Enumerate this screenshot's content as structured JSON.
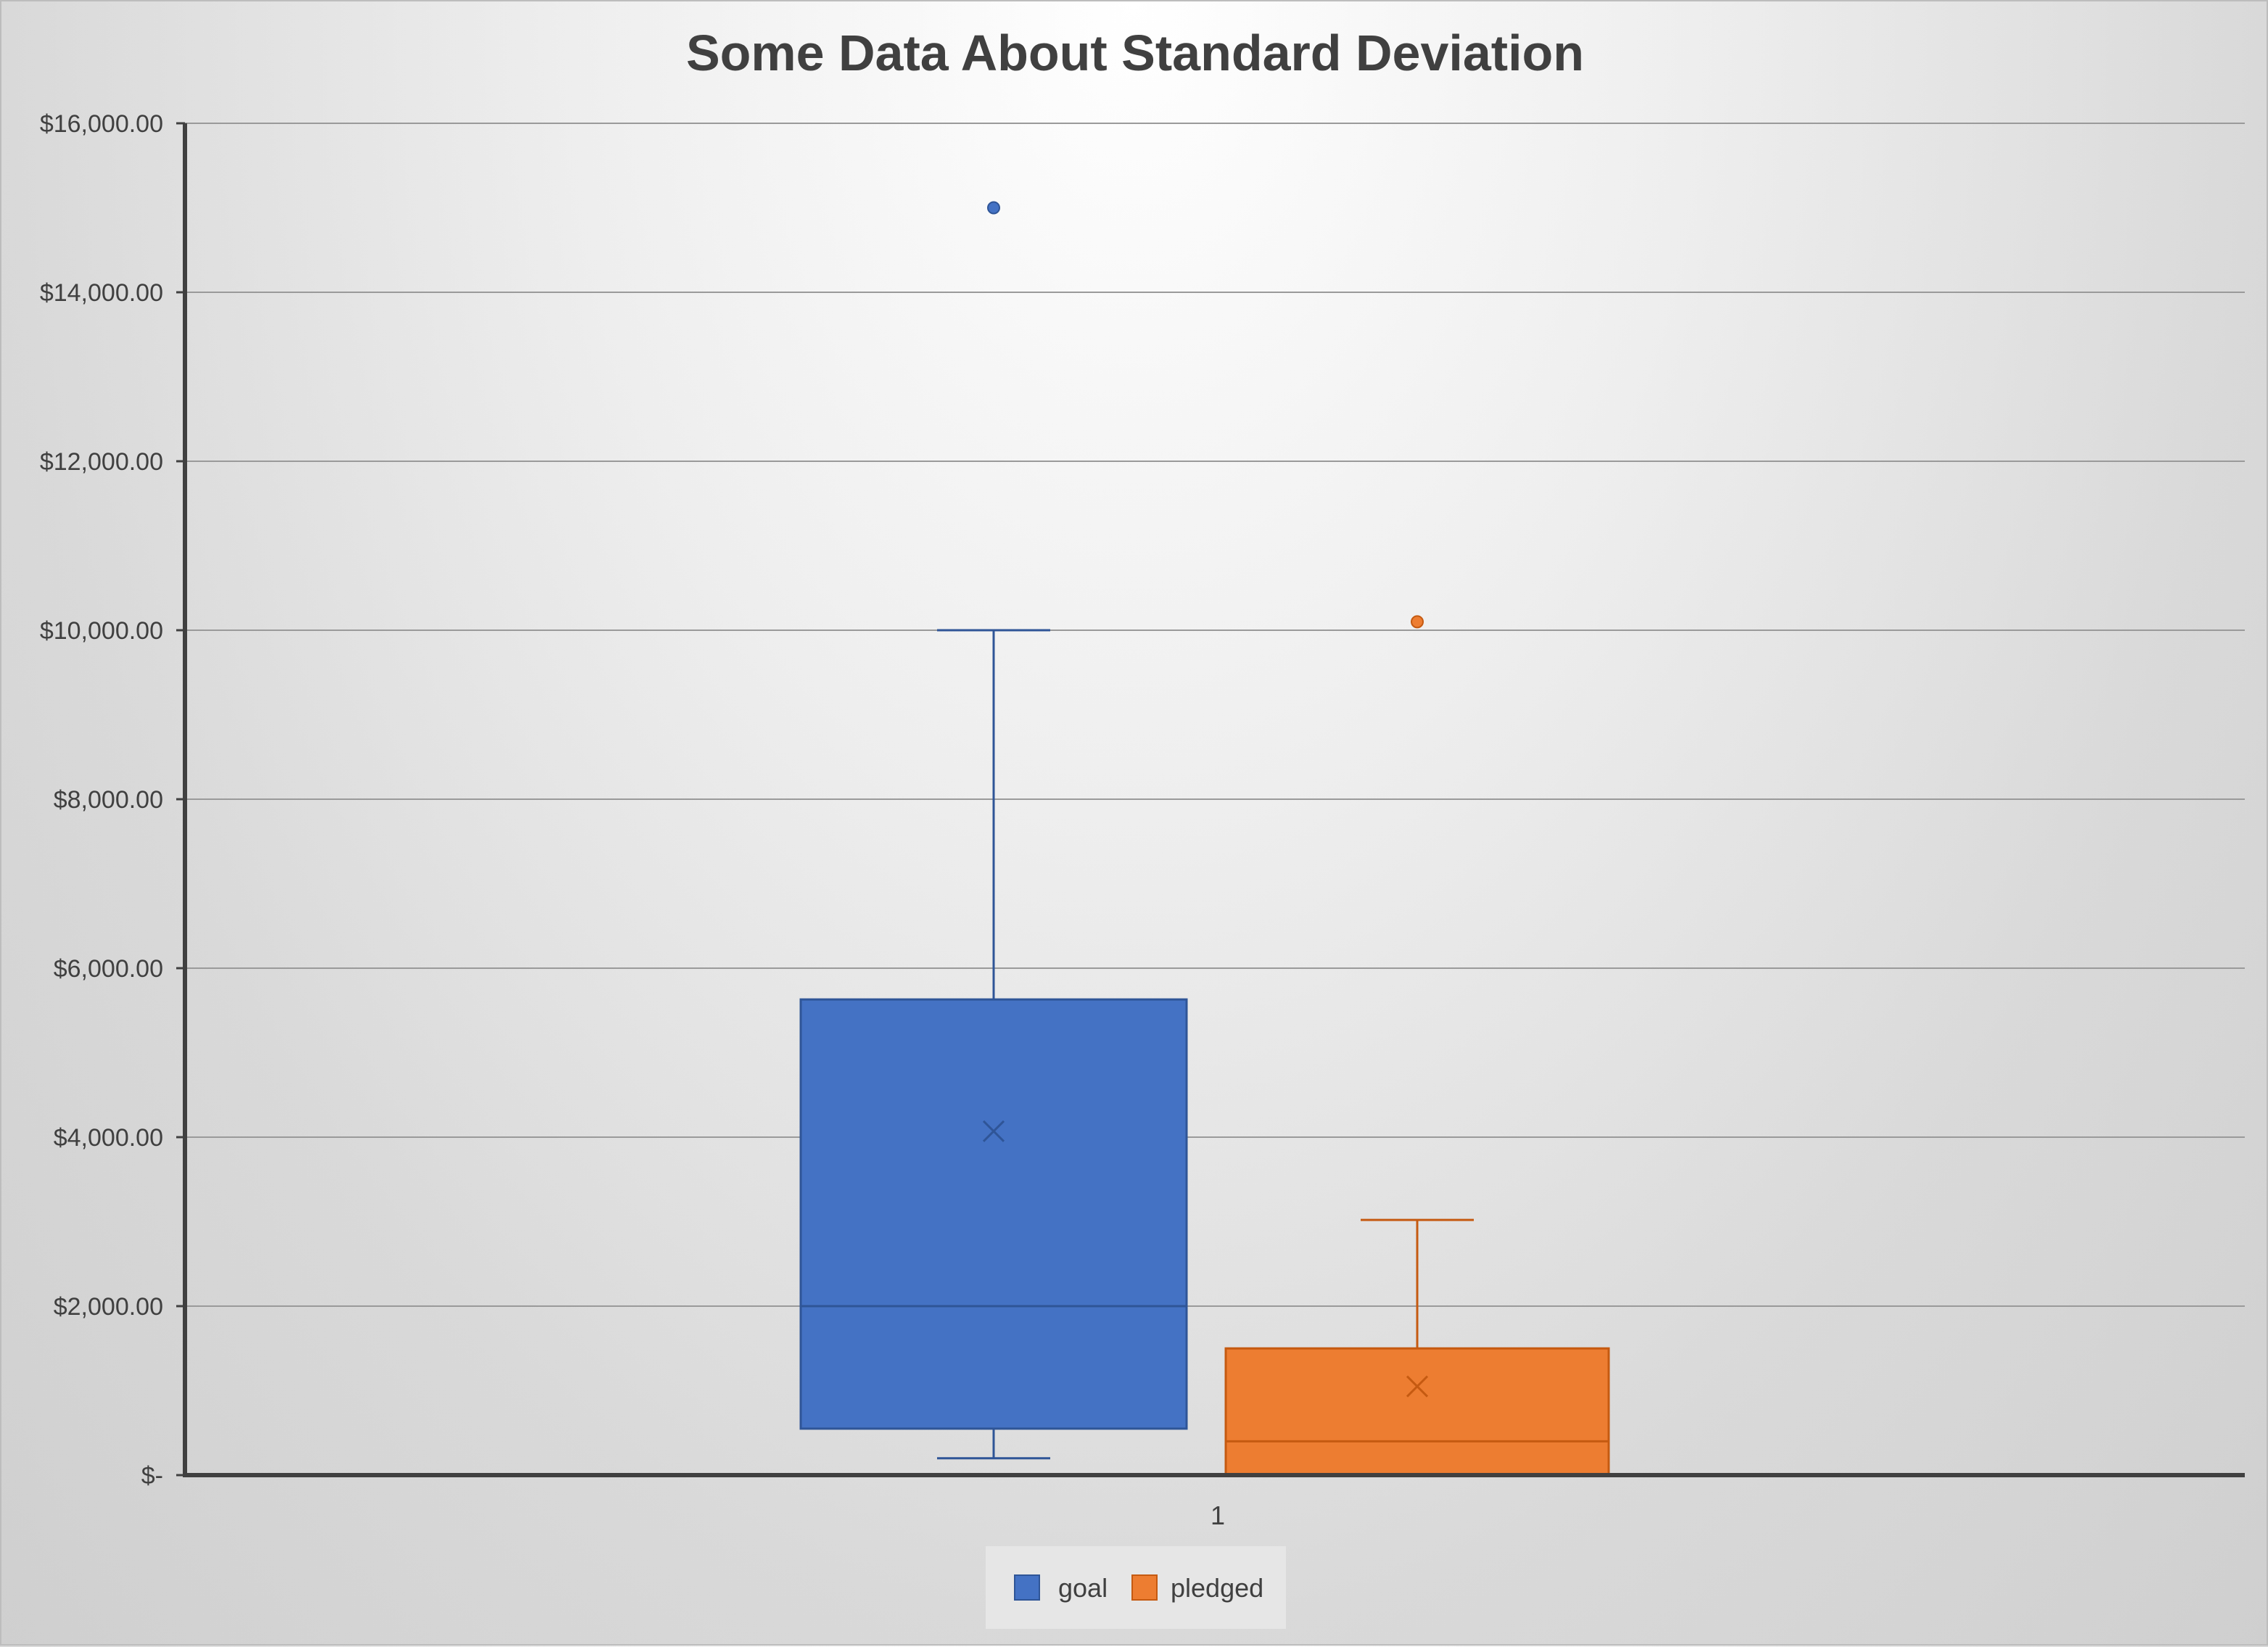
{
  "chart_data": {
    "type": "box",
    "title": "Some Data About Standard Deviation",
    "categories": [
      "1"
    ],
    "y_tick_labels": [
      "$-",
      "$2,000.00",
      "$4,000.00",
      "$6,000.00",
      "$8,000.00",
      "$10,000.00",
      "$12,000.00",
      "$14,000.00",
      "$16,000.00"
    ],
    "y_tick_values": [
      0,
      2000,
      4000,
      6000,
      8000,
      10000,
      12000,
      14000,
      16000
    ],
    "ylim": [
      0,
      16000
    ],
    "grid": true,
    "legend_position": "bottom",
    "series": [
      {
        "name": "goal",
        "color": "#4472C4",
        "min": 200,
        "q1": 550,
        "median": 2000,
        "mean": 4070,
        "q3": 5630,
        "max": 10000,
        "outliers": [
          15000
        ]
      },
      {
        "name": "pledged",
        "color": "#ED7D31",
        "min": 0,
        "q1": 0,
        "median": 400,
        "mean": 1050,
        "q3": 1500,
        "max": 3020,
        "outliers": [
          10100
        ]
      }
    ]
  }
}
